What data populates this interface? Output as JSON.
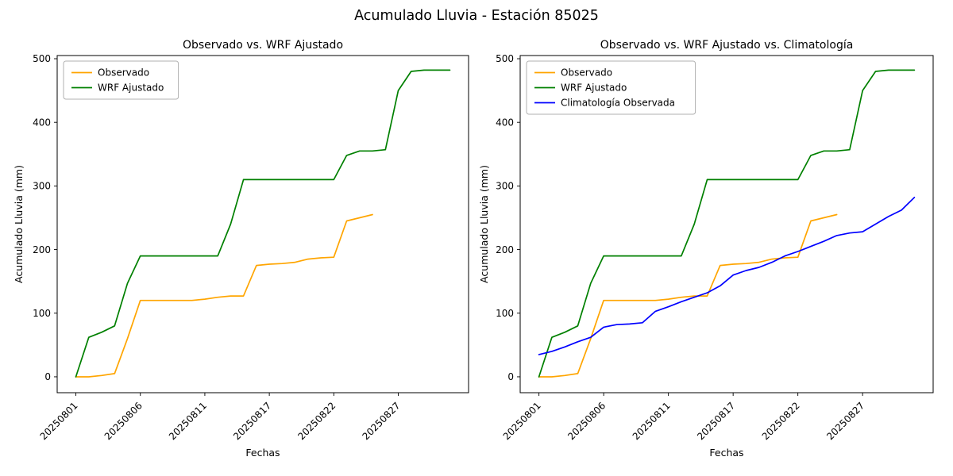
{
  "figure": {
    "title": "Acumulado Lluvia - Estación 85025"
  },
  "chart_data": [
    {
      "type": "line",
      "title": "Observado vs. WRF Ajustado",
      "xlabel": "Fechas",
      "ylabel": "Acumulado Lluvia (mm)",
      "ylim": [
        -25,
        505
      ],
      "yticks": [
        0,
        100,
        200,
        300,
        400,
        500
      ],
      "n_points": 30,
      "x_tick_indices": [
        0,
        5,
        10,
        15,
        20,
        25
      ],
      "x_tick_labels": [
        "20250801",
        "20250806",
        "20250811",
        "20250817",
        "20250822",
        "20250827"
      ],
      "legend_position": "upper-left",
      "grid": false,
      "series": [
        {
          "name": "Observado",
          "color": "#ffa500",
          "values": [
            0,
            0,
            2,
            5,
            60,
            120,
            120,
            120,
            120,
            120,
            122,
            125,
            127,
            127,
            175,
            177,
            178,
            180,
            185,
            187,
            188,
            245,
            250,
            255
          ]
        },
        {
          "name": "WRF Ajustado",
          "color": "#008000",
          "values": [
            0,
            62,
            70,
            80,
            147,
            190,
            190,
            190,
            190,
            190,
            190,
            190,
            240,
            310,
            310,
            310,
            310,
            310,
            310,
            310,
            310,
            348,
            355,
            355,
            357,
            450,
            480,
            482,
            482,
            482
          ]
        }
      ]
    },
    {
      "type": "line",
      "title": "Observado vs. WRF Ajustado vs. Climatología",
      "xlabel": "Fechas",
      "ylabel": "Acumulado Lluvia (mm)",
      "ylim": [
        -25,
        505
      ],
      "yticks": [
        0,
        100,
        200,
        300,
        400,
        500
      ],
      "n_points": 30,
      "x_tick_indices": [
        0,
        5,
        10,
        15,
        20,
        25
      ],
      "x_tick_labels": [
        "20250801",
        "20250806",
        "20250811",
        "20250817",
        "20250822",
        "20250827"
      ],
      "legend_position": "upper-left",
      "grid": false,
      "series": [
        {
          "name": "Observado",
          "color": "#ffa500",
          "values": [
            0,
            0,
            2,
            5,
            60,
            120,
            120,
            120,
            120,
            120,
            122,
            125,
            127,
            127,
            175,
            177,
            178,
            180,
            185,
            187,
            188,
            245,
            250,
            255
          ]
        },
        {
          "name": "WRF Ajustado",
          "color": "#008000",
          "values": [
            0,
            62,
            70,
            80,
            147,
            190,
            190,
            190,
            190,
            190,
            190,
            190,
            240,
            310,
            310,
            310,
            310,
            310,
            310,
            310,
            310,
            348,
            355,
            355,
            357,
            450,
            480,
            482,
            482,
            482
          ]
        },
        {
          "name": "Climatología Observada",
          "color": "#0000ff",
          "values": [
            35,
            40,
            47,
            55,
            62,
            78,
            82,
            83,
            85,
            103,
            110,
            118,
            125,
            132,
            143,
            160,
            167,
            172,
            180,
            190,
            197,
            205,
            213,
            222,
            226,
            228,
            240,
            252,
            262,
            282
          ]
        }
      ]
    }
  ]
}
